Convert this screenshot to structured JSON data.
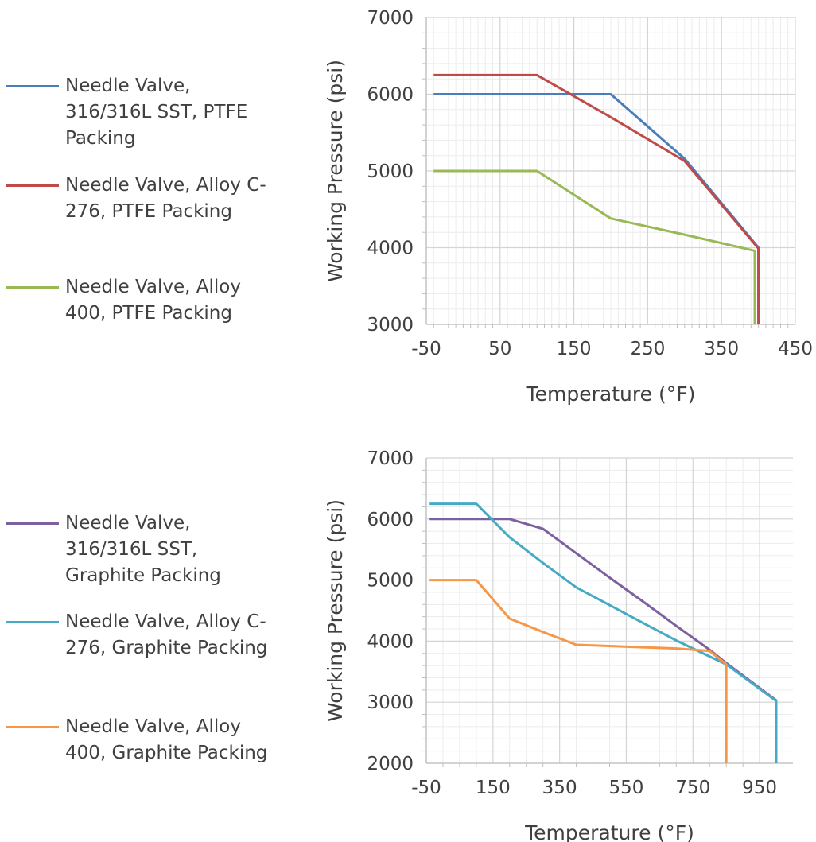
{
  "chart_data": [
    {
      "type": "line",
      "xlabel": "Temperature (°F)",
      "ylabel": "Working Pressure  (psi)",
      "xlim": [
        -50,
        450
      ],
      "ylim": [
        3000,
        7000
      ],
      "x_ticks": [
        "-50",
        "50",
        "150",
        "250",
        "350",
        "450"
      ],
      "y_ticks": [
        "3000",
        "4000",
        "5000",
        "6000",
        "7000"
      ],
      "grid": true,
      "legend_position": "left",
      "series": [
        {
          "name": "Needle Valve,\n316/316L SST, PTFE\nPacking",
          "color": "#4a7ebb",
          "x": [
            -40,
            100,
            200,
            300,
            400,
            400
          ],
          "y": [
            6000,
            6000,
            6000,
            5160,
            4000,
            3000
          ]
        },
        {
          "name": "Needle Valve, Alloy C-\n276, PTFE Packing",
          "color": "#be4b48",
          "x": [
            -40,
            100,
            200,
            300,
            400,
            400
          ],
          "y": [
            6250,
            6250,
            5700,
            5130,
            3990,
            3000
          ]
        },
        {
          "name": "Needle Valve, Alloy\n400, PTFE Packing",
          "color": "#98b954",
          "x": [
            -40,
            100,
            200,
            300,
            395,
            395
          ],
          "y": [
            5000,
            5000,
            4380,
            4170,
            3960,
            3000
          ]
        }
      ]
    },
    {
      "type": "line",
      "xlabel": "Temperature (°F)",
      "ylabel": "Working Pressure  (psi)",
      "xlim": [
        -50,
        1050
      ],
      "ylim": [
        2000,
        7000
      ],
      "x_ticks": [
        "-50",
        "150",
        "350",
        "550",
        "750",
        "950"
      ],
      "y_ticks": [
        "2000",
        "3000",
        "4000",
        "5000",
        "6000",
        "7000"
      ],
      "grid": true,
      "legend_position": "left",
      "series": [
        {
          "name": "Needle Valve,\n316/316L SST,\nGraphite Packing",
          "color": "#7d60a0",
          "x": [
            -40,
            100,
            200,
            300,
            400,
            500,
            600,
            700,
            800,
            850,
            1000,
            1000
          ],
          "y": [
            6000,
            6000,
            6000,
            5840,
            5440,
            5040,
            4650,
            4250,
            3860,
            3640,
            3030,
            2000
          ]
        },
        {
          "name": "Needle Valve, Alloy C-\n276, Graphite Packing",
          "color": "#46aac5",
          "x": [
            -40,
            100,
            200,
            300,
            400,
            500,
            600,
            700,
            800,
            850,
            1000,
            1000
          ],
          "y": [
            6250,
            6250,
            5700,
            5280,
            4880,
            4590,
            4300,
            4010,
            3750,
            3620,
            3020,
            2000
          ]
        },
        {
          "name": "Needle Valve, Alloy\n400, Graphite Packing",
          "color": "#f79646",
          "x": [
            -40,
            100,
            200,
            300,
            400,
            600,
            700,
            800,
            850,
            850
          ],
          "y": [
            5000,
            5000,
            4370,
            4150,
            3940,
            3900,
            3880,
            3840,
            3620,
            2000
          ]
        }
      ]
    }
  ]
}
